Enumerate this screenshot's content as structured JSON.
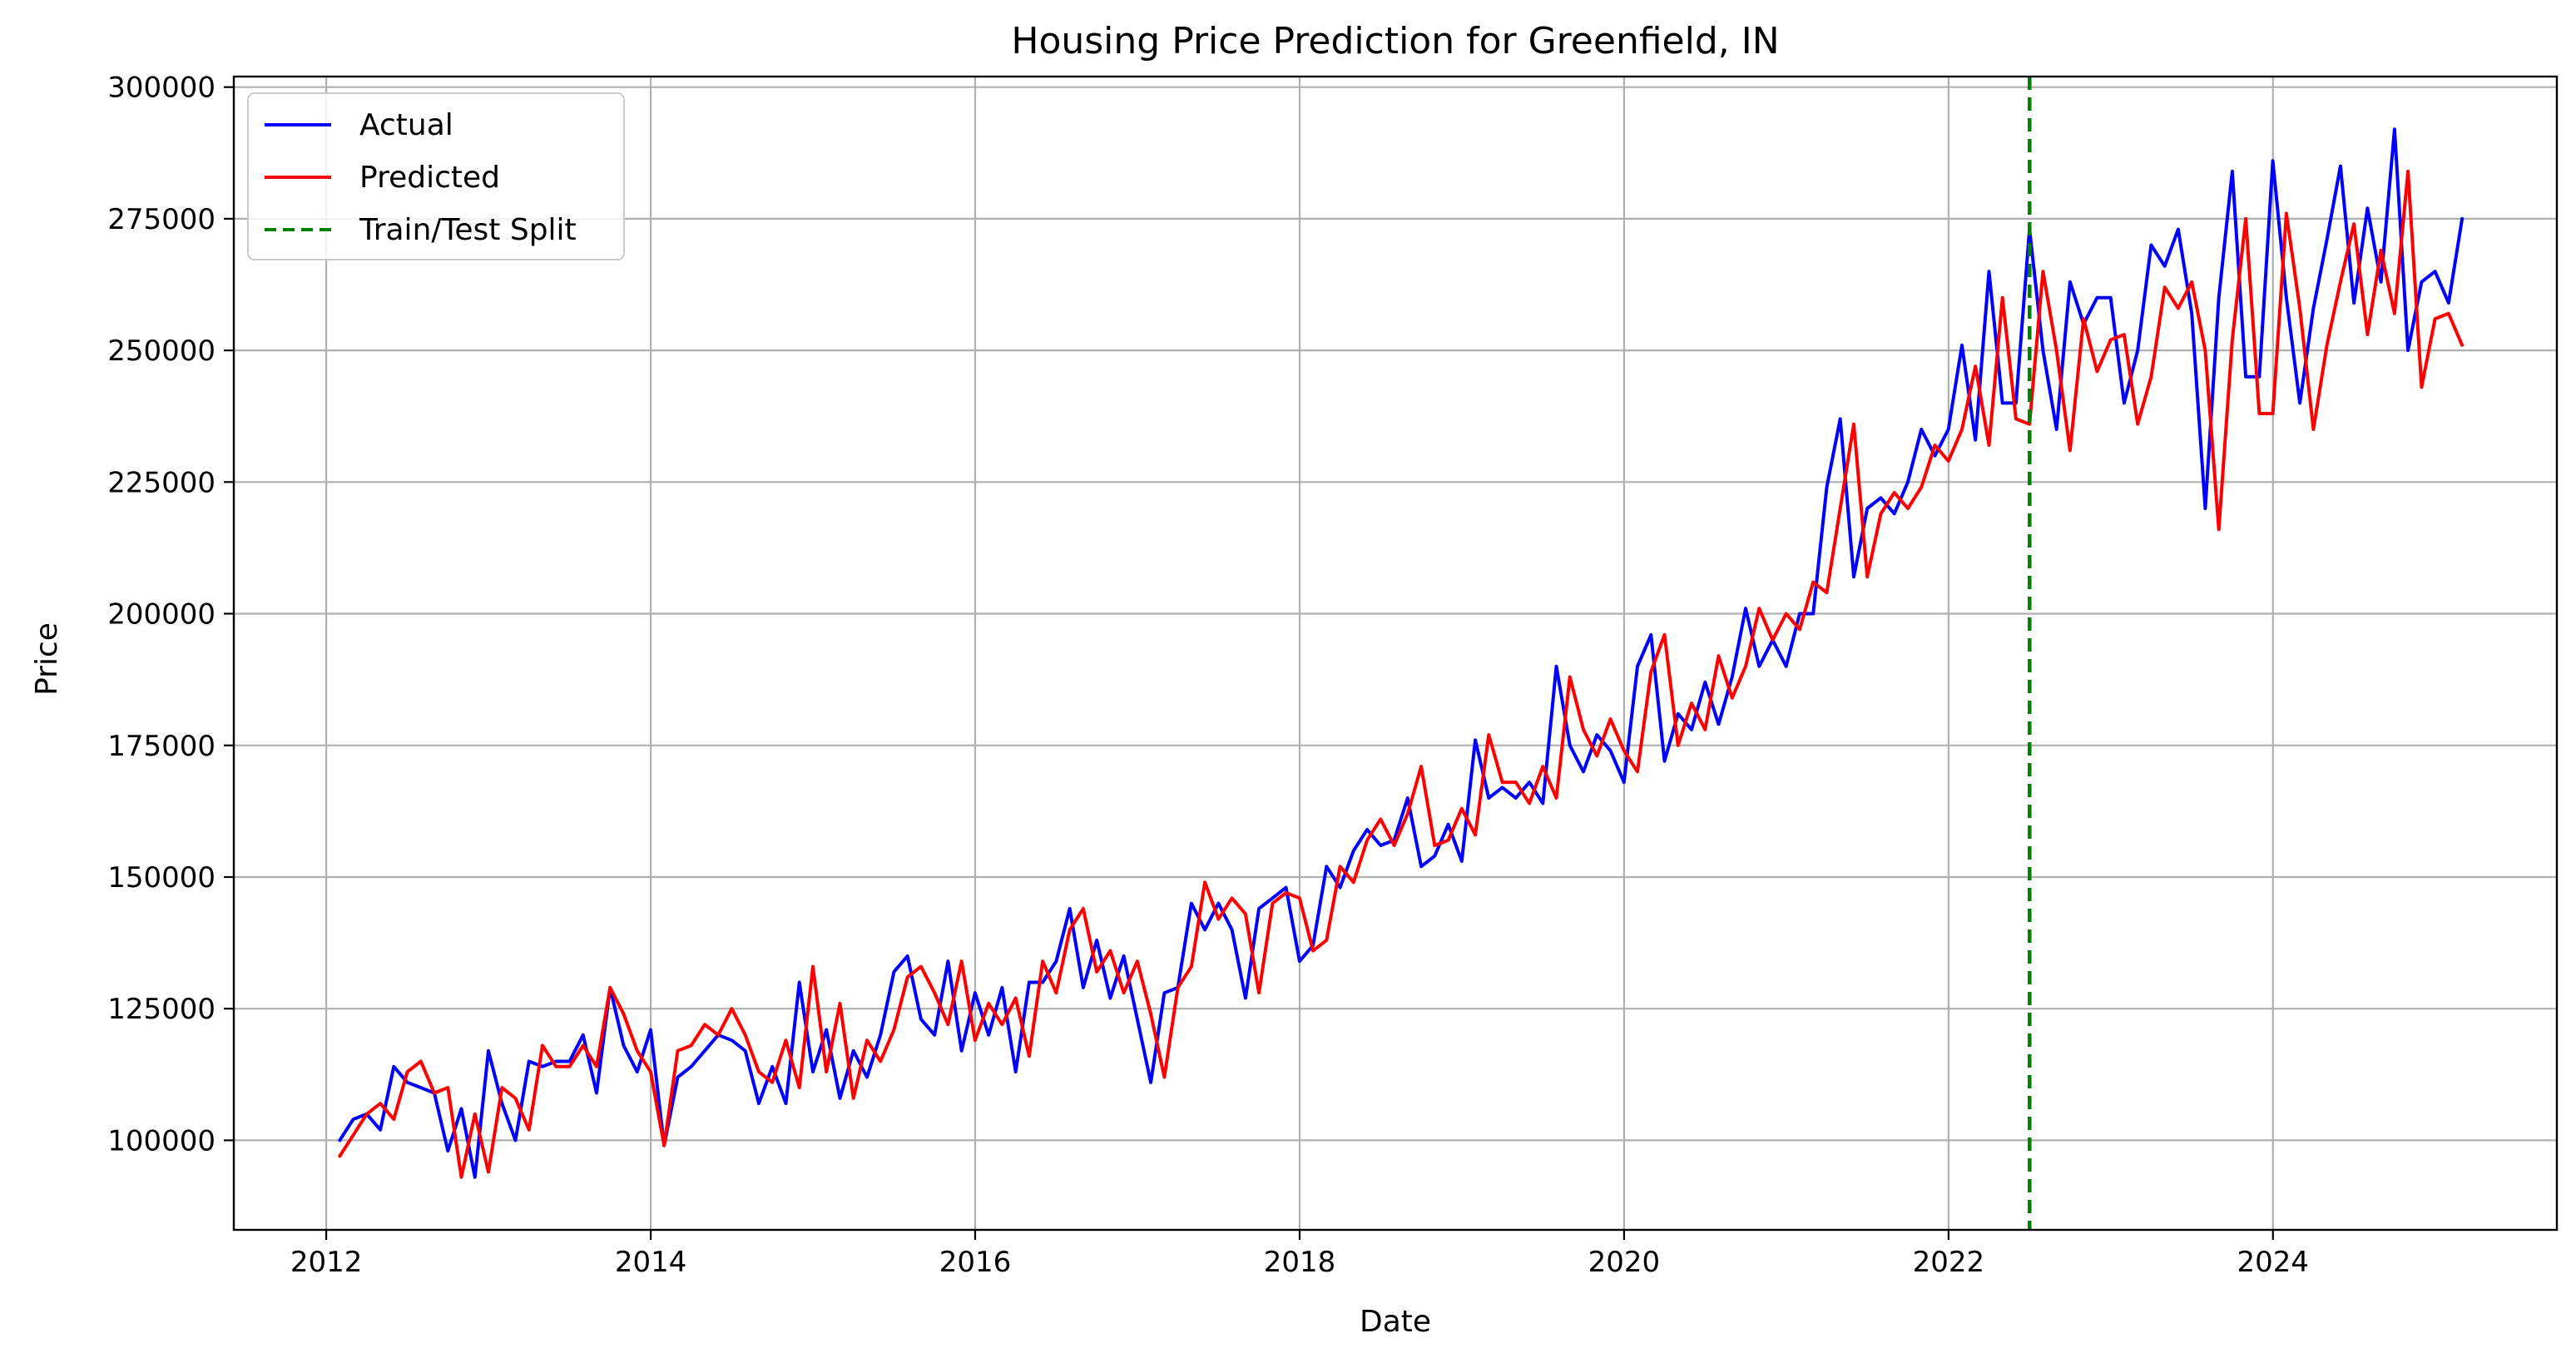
{
  "chart_data": {
    "type": "line",
    "title": "Housing Price Prediction for Greenfield, IN",
    "xlabel": "Date",
    "ylabel": "Price",
    "xlim": [
      2011.43,
      2025.75
    ],
    "ylim": [
      83000,
      302000
    ],
    "x_ticks": [
      2012,
      2014,
      2016,
      2018,
      2020,
      2022,
      2024
    ],
    "y_ticks": [
      100000,
      125000,
      150000,
      175000,
      200000,
      225000,
      250000,
      275000,
      300000
    ],
    "grid": true,
    "legend_position": "top-left",
    "split_x": 2022.5,
    "split_label": "Train/Test Split",
    "split_color": "#008000",
    "x_start": 2012.083,
    "x_step": 0.08333,
    "series": [
      {
        "name": "Actual",
        "color": "#0000ff",
        "values": [
          100000,
          104000,
          105000,
          102000,
          114000,
          111000,
          110000,
          109000,
          98000,
          106000,
          93000,
          117000,
          107000,
          100000,
          115000,
          114000,
          115000,
          115000,
          120000,
          109000,
          129000,
          118000,
          113000,
          121000,
          99000,
          112000,
          114000,
          117000,
          120000,
          119000,
          117000,
          107000,
          114000,
          107000,
          130000,
          113000,
          121000,
          108000,
          117000,
          112000,
          120000,
          132000,
          135000,
          123000,
          120000,
          134000,
          117000,
          128000,
          120000,
          129000,
          113000,
          130000,
          130000,
          134000,
          144000,
          129000,
          138000,
          127000,
          135000,
          123000,
          111000,
          128000,
          129000,
          145000,
          140000,
          145000,
          140000,
          127000,
          144000,
          146000,
          148000,
          134000,
          137000,
          152000,
          148000,
          155000,
          159000,
          156000,
          157000,
          165000,
          152000,
          154000,
          160000,
          153000,
          176000,
          165000,
          167000,
          165000,
          168000,
          164000,
          190000,
          175000,
          170000,
          177000,
          174000,
          168000,
          190000,
          196000,
          172000,
          181000,
          178000,
          187000,
          179000,
          188000,
          201000,
          190000,
          195000,
          190000,
          200000,
          200000,
          224000,
          237000,
          207000,
          220000,
          222000,
          219000,
          225000,
          235000,
          230000,
          235000,
          251000,
          233000,
          265000,
          240000,
          240000,
          273000,
          250000,
          235000,
          263000,
          255000,
          260000,
          260000,
          240000,
          250000,
          270000,
          266000,
          273000,
          257000,
          220000,
          260000,
          284000,
          245000,
          245000,
          286000,
          260000,
          240000,
          258000,
          271000,
          285000,
          259000,
          277000,
          263000,
          292000,
          250000,
          263000,
          265000,
          259000,
          275000
        ]
      },
      {
        "name": "Predicted",
        "color": "#ff0000",
        "values": [
          97000,
          101000,
          105000,
          107000,
          104000,
          113000,
          115000,
          109000,
          110000,
          93000,
          105000,
          94000,
          110000,
          108000,
          102000,
          118000,
          114000,
          114000,
          118000,
          114000,
          129000,
          124000,
          117000,
          113000,
          99000,
          117000,
          118000,
          122000,
          120000,
          125000,
          120000,
          113000,
          111000,
          119000,
          110000,
          133000,
          113000,
          126000,
          108000,
          119000,
          115000,
          121000,
          131000,
          133000,
          128000,
          122000,
          134000,
          119000,
          126000,
          122000,
          127000,
          116000,
          134000,
          128000,
          140000,
          144000,
          132000,
          136000,
          128000,
          134000,
          124000,
          112000,
          129000,
          133000,
          149000,
          142000,
          146000,
          143000,
          128000,
          145000,
          147000,
          146000,
          136000,
          138000,
          152000,
          149000,
          157000,
          161000,
          156000,
          162000,
          171000,
          156000,
          157000,
          163000,
          158000,
          177000,
          168000,
          168000,
          164000,
          171000,
          165000,
          188000,
          178000,
          173000,
          180000,
          174000,
          170000,
          189000,
          196000,
          175000,
          183000,
          178000,
          192000,
          184000,
          190000,
          201000,
          195000,
          200000,
          197000,
          206000,
          204000,
          220000,
          236000,
          207000,
          219000,
          223000,
          220000,
          224000,
          232000,
          229000,
          235000,
          247000,
          232000,
          260000,
          237000,
          236000,
          265000,
          250000,
          231000,
          256000,
          246000,
          252000,
          253000,
          236000,
          245000,
          262000,
          258000,
          263000,
          250000,
          216000,
          252000,
          275000,
          238000,
          238000,
          276000,
          258000,
          235000,
          251000,
          263000,
          274000,
          253000,
          269000,
          257000,
          284000,
          243000,
          256000,
          257000,
          251000
        ]
      }
    ]
  }
}
